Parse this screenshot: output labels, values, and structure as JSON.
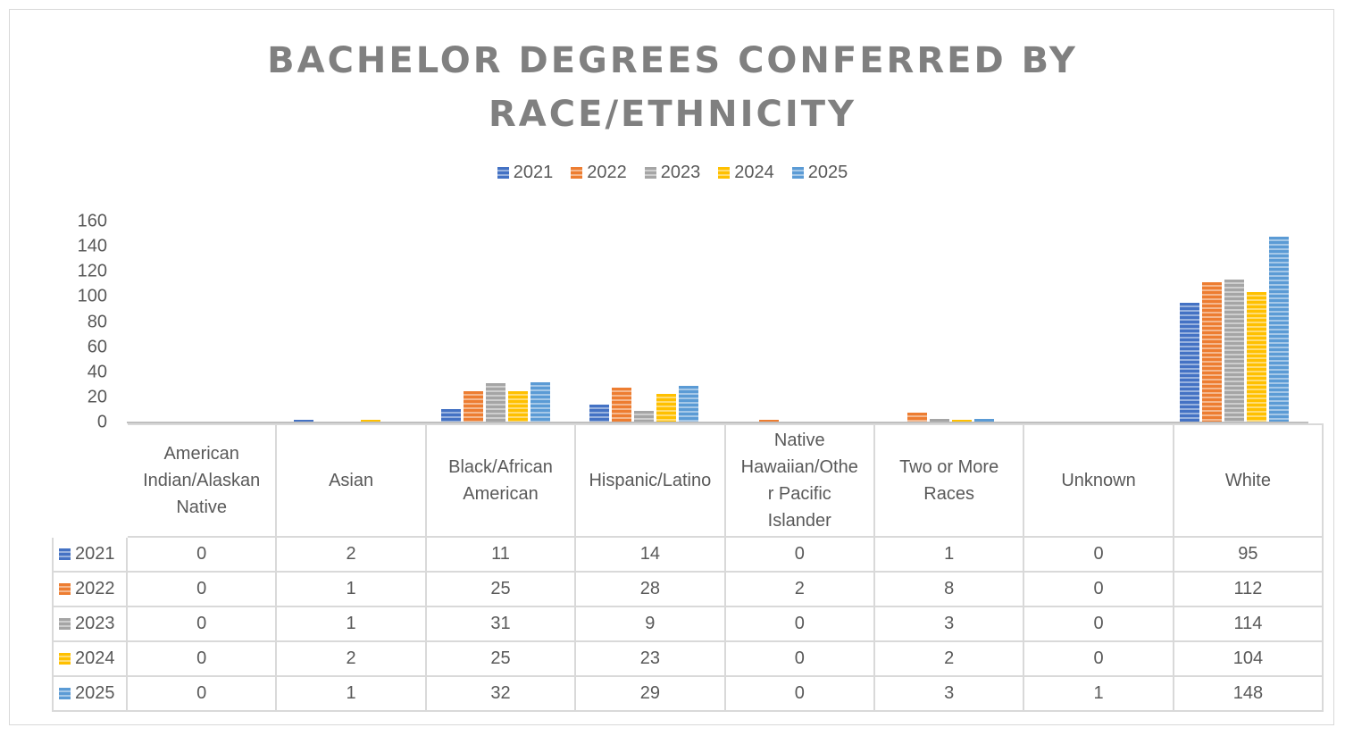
{
  "chart_data": {
    "type": "bar",
    "title": "BACHELOR DEGREES CONFERRED BY RACE/ETHNICITY",
    "title_lines": [
      "BACHELOR DEGREES CONFERRED BY",
      "RACE/ETHNICITY"
    ],
    "xlabel": "",
    "ylabel": "",
    "ylim": [
      0,
      160
    ],
    "yticks": [
      0,
      20,
      40,
      60,
      80,
      100,
      120,
      140,
      160
    ],
    "grid": false,
    "legend_position": "top",
    "data_table": true,
    "categories": [
      "American Indian/Alaskan Native",
      "Asian",
      "Black/African American",
      "Hispanic/Latino",
      "Native Hawaiian/Other Pacific Islander",
      "Two or More Races",
      "Unknown",
      "White"
    ],
    "category_display": [
      [
        "American",
        "Indian/Alaskan",
        "Native"
      ],
      [
        "Asian"
      ],
      [
        "Black/African",
        "American"
      ],
      [
        "Hispanic/Latino"
      ],
      [
        "Native",
        "Hawaiian/Othe",
        "r Pacific",
        "Islander"
      ],
      [
        "Two or More",
        "Races"
      ],
      [
        "Unknown"
      ],
      [
        "White"
      ]
    ],
    "series": [
      {
        "name": "2021",
        "color": "#4472c4",
        "values": [
          0,
          2,
          11,
          14,
          0,
          1,
          0,
          95
        ]
      },
      {
        "name": "2022",
        "color": "#ed7d31",
        "values": [
          0,
          1,
          25,
          28,
          2,
          8,
          0,
          112
        ]
      },
      {
        "name": "2023",
        "color": "#a5a5a5",
        "values": [
          0,
          1,
          31,
          9,
          0,
          3,
          0,
          114
        ]
      },
      {
        "name": "2024",
        "color": "#ffc000",
        "values": [
          0,
          2,
          25,
          23,
          0,
          2,
          0,
          104
        ]
      },
      {
        "name": "2025",
        "color": "#5b9bd5",
        "values": [
          0,
          1,
          32,
          29,
          0,
          3,
          1,
          148
        ]
      }
    ]
  }
}
